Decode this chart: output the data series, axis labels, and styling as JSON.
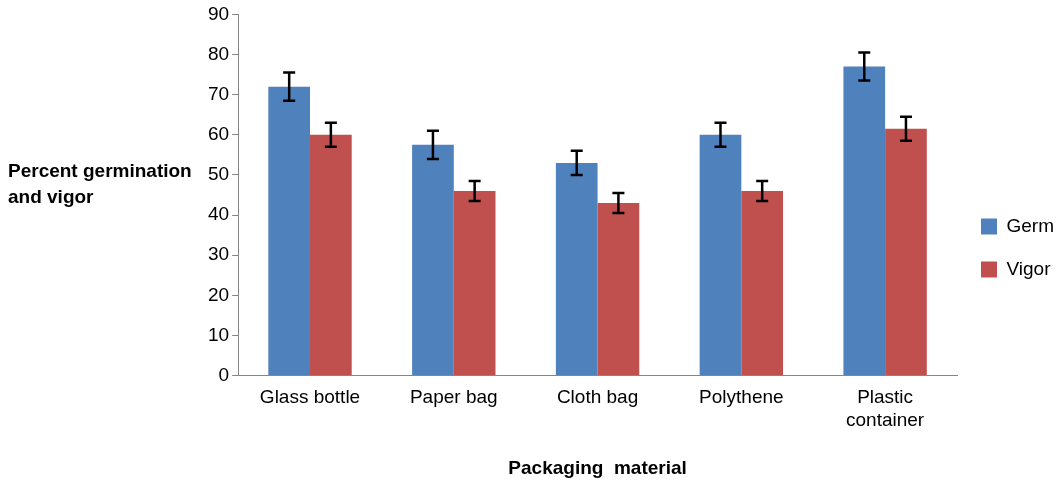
{
  "chart_data": {
    "type": "bar",
    "categories": [
      "Glass bottle",
      "Paper bag",
      "Cloth bag",
      "Polythene",
      "Plastic container"
    ],
    "series": [
      {
        "name": "Germ",
        "color": "#4f81bd",
        "values": [
          72,
          57.5,
          53,
          60,
          77
        ],
        "errors": [
          3.5,
          3.5,
          3,
          3,
          3.5
        ]
      },
      {
        "name": "Vigor",
        "color": "#c0504d",
        "values": [
          60,
          46,
          43,
          46,
          61.5
        ],
        "errors": [
          3,
          2.5,
          2.5,
          2.5,
          3
        ]
      }
    ],
    "xlabel": "Packaging  material",
    "ylabel": "Percent germination and vigor",
    "ylim": [
      0,
      90
    ],
    "yticks": [
      0,
      10,
      20,
      30,
      40,
      50,
      60,
      70,
      80,
      90
    ],
    "grid": false,
    "legend": "right"
  }
}
